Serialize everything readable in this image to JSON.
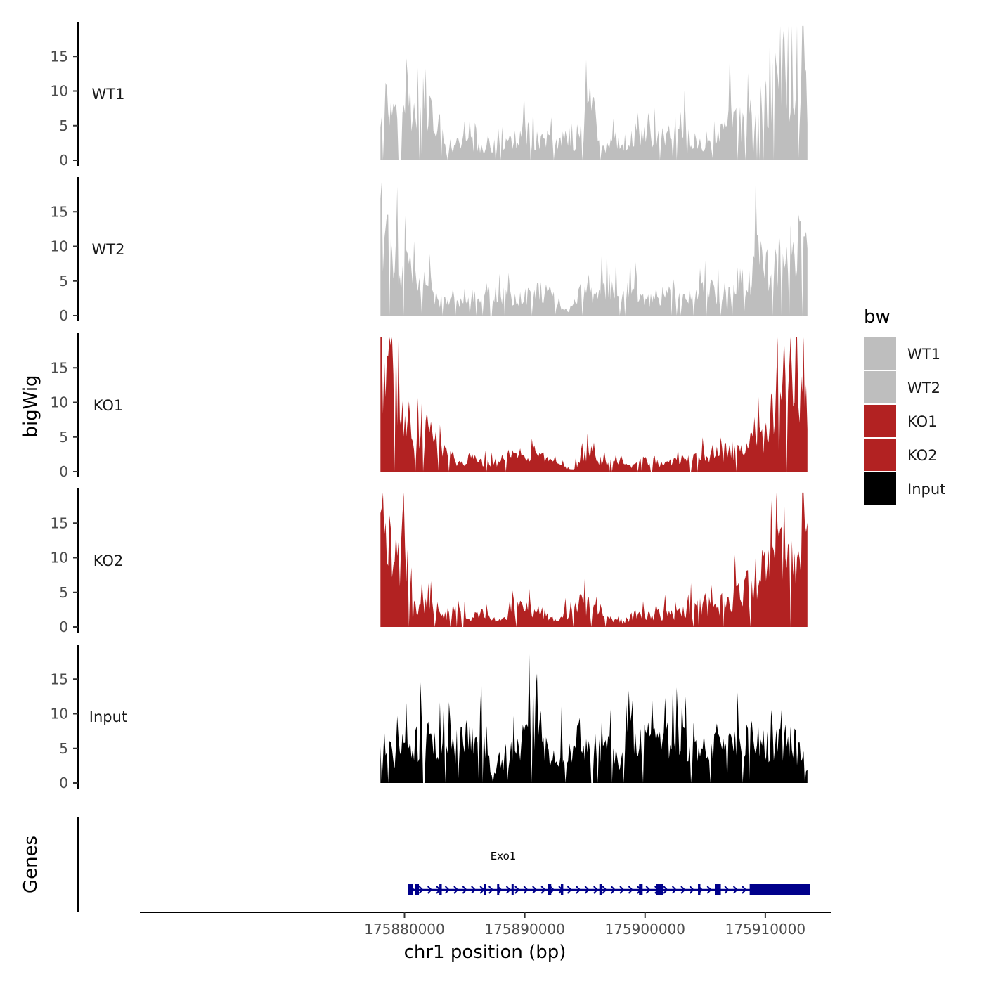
{
  "chart_data": {
    "type": "area",
    "ylabel": "bigWig",
    "xlabel": "chr1 position (bp)",
    "genes_label": "Genes",
    "x_range": [
      175858000,
      175915500
    ],
    "y_range": [
      0,
      20
    ],
    "y_ticks": [
      0,
      5,
      10,
      15
    ],
    "x_ticks": [
      175880000,
      175890000,
      175900000,
      175910000
    ],
    "data_x_range": [
      175878000,
      175913500
    ],
    "legend": {
      "title": "bw",
      "entries": [
        {
          "name": "WT1",
          "color": "#bebebe"
        },
        {
          "name": "WT2",
          "color": "#bebebe"
        },
        {
          "name": "KO1",
          "color": "#b22222"
        },
        {
          "name": "KO2",
          "color": "#b22222"
        },
        {
          "name": "Input",
          "color": "#000000"
        }
      ]
    },
    "tracks": [
      {
        "name": "WT1",
        "color": "#bebebe",
        "anchors": [
          [
            0,
            9
          ],
          [
            0.03,
            8
          ],
          [
            0.05,
            13.5
          ],
          [
            0.08,
            6
          ],
          [
            0.11,
            8
          ],
          [
            0.14,
            4
          ],
          [
            0.16,
            1
          ],
          [
            0.19,
            3
          ],
          [
            0.22,
            2.5
          ],
          [
            0.25,
            1.5
          ],
          [
            0.28,
            2
          ],
          [
            0.31,
            3
          ],
          [
            0.34,
            4
          ],
          [
            0.37,
            3
          ],
          [
            0.4,
            2.5
          ],
          [
            0.43,
            3.5
          ],
          [
            0.46,
            2
          ],
          [
            0.49,
            8.5
          ],
          [
            0.52,
            2
          ],
          [
            0.55,
            2.5
          ],
          [
            0.58,
            2
          ],
          [
            0.61,
            4
          ],
          [
            0.64,
            3
          ],
          [
            0.67,
            3.5
          ],
          [
            0.7,
            5
          ],
          [
            0.73,
            3
          ],
          [
            0.76,
            2
          ],
          [
            0.79,
            3
          ],
          [
            0.82,
            7
          ],
          [
            0.85,
            5
          ],
          [
            0.88,
            7
          ],
          [
            0.91,
            9
          ],
          [
            0.94,
            13.5
          ],
          [
            0.97,
            10
          ],
          [
            1,
            11
          ]
        ]
      },
      {
        "name": "WT2",
        "color": "#bebebe",
        "anchors": [
          [
            0,
            12
          ],
          [
            0.03,
            10
          ],
          [
            0.05,
            7
          ],
          [
            0.08,
            6
          ],
          [
            0.11,
            4
          ],
          [
            0.14,
            2
          ],
          [
            0.17,
            2
          ],
          [
            0.2,
            3
          ],
          [
            0.23,
            2.5
          ],
          [
            0.26,
            4
          ],
          [
            0.29,
            3
          ],
          [
            0.32,
            2.5
          ],
          [
            0.35,
            3
          ],
          [
            0.38,
            4
          ],
          [
            0.41,
            2.5
          ],
          [
            0.44,
            0.5
          ],
          [
            0.47,
            4
          ],
          [
            0.5,
            3
          ],
          [
            0.53,
            4
          ],
          [
            0.56,
            3
          ],
          [
            0.59,
            3.5
          ],
          [
            0.62,
            2.5
          ],
          [
            0.65,
            3
          ],
          [
            0.68,
            3.5
          ],
          [
            0.71,
            2.5
          ],
          [
            0.74,
            3.5
          ],
          [
            0.77,
            4
          ],
          [
            0.8,
            3
          ],
          [
            0.83,
            5
          ],
          [
            0.86,
            5
          ],
          [
            0.88,
            9
          ],
          [
            0.91,
            7
          ],
          [
            0.94,
            9
          ],
          [
            0.97,
            10
          ],
          [
            1,
            13
          ]
        ]
      },
      {
        "name": "KO1",
        "color": "#b22222",
        "anchors": [
          [
            0,
            17
          ],
          [
            0.02,
            16
          ],
          [
            0.04,
            11
          ],
          [
            0.06,
            8
          ],
          [
            0.09,
            6
          ],
          [
            0.12,
            5
          ],
          [
            0.15,
            3
          ],
          [
            0.18,
            1
          ],
          [
            0.21,
            2
          ],
          [
            0.24,
            1.5
          ],
          [
            0.27,
            1
          ],
          [
            0.3,
            2.5
          ],
          [
            0.33,
            2
          ],
          [
            0.36,
            3
          ],
          [
            0.39,
            1.5
          ],
          [
            0.42,
            0.8
          ],
          [
            0.45,
            0.3
          ],
          [
            0.48,
            2.5
          ],
          [
            0.51,
            2
          ],
          [
            0.54,
            1.5
          ],
          [
            0.57,
            1.2
          ],
          [
            0.6,
            1
          ],
          [
            0.63,
            2
          ],
          [
            0.66,
            1
          ],
          [
            0.69,
            1.5
          ],
          [
            0.72,
            2
          ],
          [
            0.75,
            2
          ],
          [
            0.78,
            2.5
          ],
          [
            0.81,
            3
          ],
          [
            0.84,
            3
          ],
          [
            0.87,
            4
          ],
          [
            0.9,
            6
          ],
          [
            0.92,
            9
          ],
          [
            0.95,
            12
          ],
          [
            0.97,
            10
          ],
          [
            1,
            12
          ]
        ]
      },
      {
        "name": "KO2",
        "color": "#b22222",
        "anchors": [
          [
            0,
            14
          ],
          [
            0.02,
            12
          ],
          [
            0.04,
            11
          ],
          [
            0.06,
            15
          ],
          [
            0.07,
            5
          ],
          [
            0.09,
            3
          ],
          [
            0.12,
            3.5
          ],
          [
            0.15,
            2
          ],
          [
            0.18,
            2.5
          ],
          [
            0.21,
            1.5
          ],
          [
            0.24,
            2
          ],
          [
            0.27,
            0.6
          ],
          [
            0.3,
            1.5
          ],
          [
            0.33,
            3.5
          ],
          [
            0.36,
            2.5
          ],
          [
            0.39,
            2
          ],
          [
            0.42,
            1
          ],
          [
            0.45,
            3
          ],
          [
            0.48,
            3.5
          ],
          [
            0.51,
            2.5
          ],
          [
            0.54,
            1.5
          ],
          [
            0.57,
            0.8
          ],
          [
            0.6,
            2
          ],
          [
            0.63,
            1.5
          ],
          [
            0.66,
            2
          ],
          [
            0.69,
            2
          ],
          [
            0.72,
            2.5
          ],
          [
            0.75,
            3
          ],
          [
            0.78,
            3
          ],
          [
            0.81,
            4
          ],
          [
            0.84,
            5
          ],
          [
            0.87,
            7
          ],
          [
            0.9,
            8
          ],
          [
            0.93,
            11
          ],
          [
            0.95,
            15
          ],
          [
            0.98,
            11
          ],
          [
            1,
            15
          ]
        ]
      },
      {
        "name": "Input",
        "color": "#000000",
        "anchors": [
          [
            0,
            5
          ],
          [
            0.03,
            4
          ],
          [
            0.06,
            5.5
          ],
          [
            0.09,
            6
          ],
          [
            0.12,
            8
          ],
          [
            0.15,
            5
          ],
          [
            0.18,
            6
          ],
          [
            0.21,
            7
          ],
          [
            0.24,
            9
          ],
          [
            0.26,
            2
          ],
          [
            0.29,
            4
          ],
          [
            0.32,
            6
          ],
          [
            0.35,
            8
          ],
          [
            0.38,
            6
          ],
          [
            0.41,
            4
          ],
          [
            0.44,
            5
          ],
          [
            0.47,
            7
          ],
          [
            0.5,
            6
          ],
          [
            0.53,
            6.5
          ],
          [
            0.56,
            4
          ],
          [
            0.58,
            11
          ],
          [
            0.61,
            7
          ],
          [
            0.64,
            6
          ],
          [
            0.67,
            6
          ],
          [
            0.7,
            7
          ],
          [
            0.73,
            4
          ],
          [
            0.76,
            5
          ],
          [
            0.79,
            6
          ],
          [
            0.82,
            5
          ],
          [
            0.85,
            6
          ],
          [
            0.88,
            7
          ],
          [
            0.91,
            5
          ],
          [
            0.94,
            6
          ],
          [
            0.97,
            6
          ],
          [
            0.99,
            3
          ],
          [
            1,
            1.5
          ]
        ]
      }
    ],
    "gene": {
      "name": "Exo1",
      "start": 175880300,
      "end": 175913700,
      "color": "#00008b",
      "strand": "+",
      "exons": [
        [
          175880300,
          175880700
        ],
        [
          175880900,
          175881200
        ],
        [
          175882900,
          175883100
        ],
        [
          175886600,
          175886700
        ],
        [
          175887700,
          175887800
        ],
        [
          175888900,
          175889000
        ],
        [
          175891900,
          175892200
        ],
        [
          175893000,
          175893200
        ],
        [
          175896200,
          175896400
        ],
        [
          175899500,
          175899800
        ],
        [
          175900900,
          175901500
        ],
        [
          175904400,
          175904600
        ],
        [
          175905800,
          175906300
        ],
        [
          175908700,
          175913700
        ]
      ]
    }
  }
}
